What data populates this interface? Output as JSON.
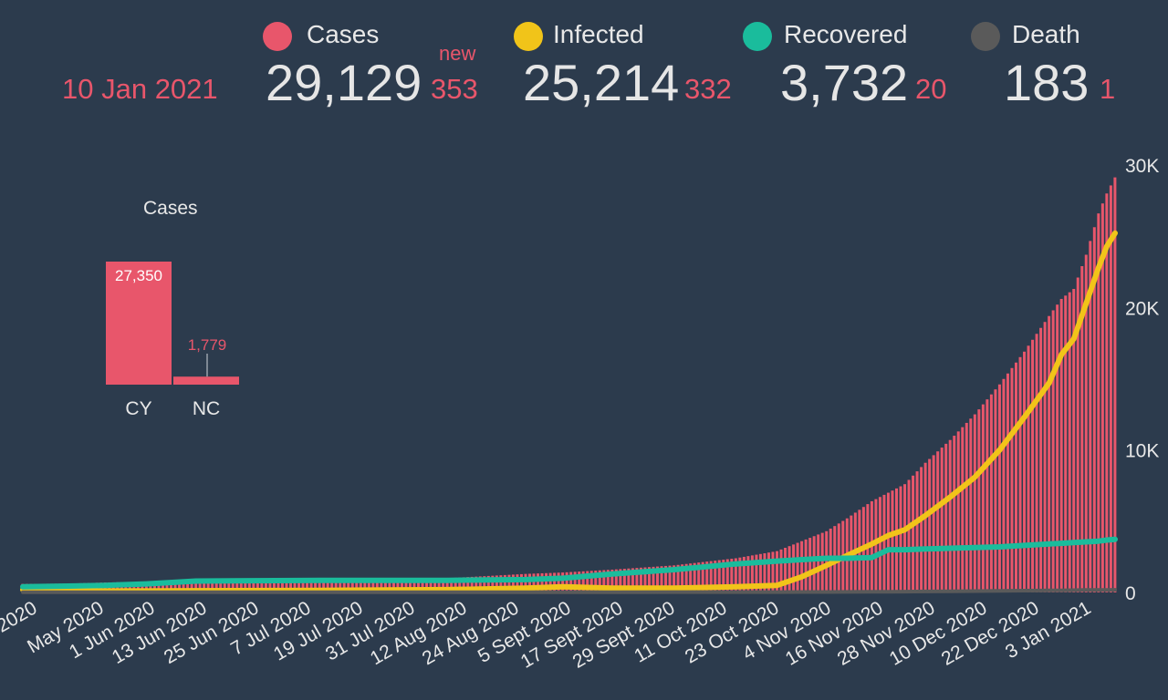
{
  "header": {
    "date": "10 Jan 2021",
    "stats": [
      {
        "label": "Cases",
        "color": "#e8566b",
        "value": "29,129",
        "delta": "353",
        "delta_note": "new"
      },
      {
        "label": "Infected",
        "color": "#f1c419",
        "value": "25,214",
        "delta": "332"
      },
      {
        "label": "Recovered",
        "color": "#1abc9c",
        "value": "3,732",
        "delta": "20"
      },
      {
        "label": "Death",
        "color": "#5a5a5a",
        "value": "183",
        "delta": "1"
      }
    ]
  },
  "mini_chart": {
    "title": "Cases"
  },
  "chart_data": [
    {
      "type": "line",
      "x_tick_labels": [
        "2020",
        "May 2020",
        "1 Jun 2020",
        "13 Jun 2020",
        "25 Jun 2020",
        "7 Jul 2020",
        "19 Jul 2020",
        "31 Jul 2020",
        "12 Aug 2020",
        "24 Aug 2020",
        "5 Sept 2020",
        "17 Sept 2020",
        "29 Sept 2020",
        "11 Oct 2020",
        "23 Oct 2020",
        "4 Nov 2020",
        "16 Nov 2020",
        "28 Nov 2020",
        "10 Dec 2020",
        "22 Dec 2020",
        "3 Jan 2021"
      ],
      "y_tick_labels": [
        "0",
        "10K",
        "20K",
        "30K"
      ],
      "ylim": [
        0,
        30000
      ],
      "x_dates": [
        "2020-04-20",
        "2020-05-01",
        "2020-05-10",
        "2020-05-20",
        "2020-06-01",
        "2020-07-01",
        "2020-08-01",
        "2020-08-20",
        "2020-08-29",
        "2020-09-10",
        "2020-09-25",
        "2020-10-10",
        "2020-10-20",
        "2020-10-26",
        "2020-11-01",
        "2020-11-06",
        "2020-11-12",
        "2020-11-16",
        "2020-11-20",
        "2020-11-25",
        "2020-12-01",
        "2020-12-07",
        "2020-12-13",
        "2020-12-19",
        "2020-12-25",
        "2020-12-28",
        "2020-12-31",
        "2021-01-03",
        "2021-01-06",
        "2021-01-08",
        "2021-01-10"
      ],
      "series": [
        {
          "name": "Cases",
          "color": "#e8566b",
          "style": "bars",
          "values": [
            600,
            620,
            700,
            750,
            870,
            950,
            1000,
            1300,
            1400,
            1600,
            1900,
            2400,
            2900,
            3600,
            4300,
            5200,
            6400,
            7000,
            7600,
            9100,
            10700,
            12500,
            14600,
            16900,
            19400,
            20600,
            21300,
            23700,
            26600,
            28000,
            29129
          ]
        },
        {
          "name": "Infected",
          "color": "#f1c419",
          "style": "line",
          "values": [
            200,
            150,
            100,
            100,
            120,
            150,
            200,
            300,
            400,
            300,
            300,
            400,
            500,
            1100,
            1900,
            2600,
            3400,
            4000,
            4400,
            5400,
            6700,
            8100,
            10000,
            12300,
            14700,
            16700,
            17800,
            20300,
            22800,
            24300,
            25214
          ]
        },
        {
          "name": "Recovered",
          "color": "#1abc9c",
          "style": "line",
          "values": [
            400,
            450,
            500,
            600,
            800,
            850,
            850,
            900,
            1000,
            1300,
            1600,
            2000,
            2200,
            2300,
            2400,
            2400,
            2450,
            3000,
            3000,
            3050,
            3100,
            3150,
            3200,
            3300,
            3400,
            3450,
            3500,
            3550,
            3600,
            3680,
            3732
          ]
        },
        {
          "name": "Death",
          "color": "#5a5a5a",
          "style": "line",
          "values": [
            10,
            15,
            17,
            19,
            19,
            19,
            19,
            20,
            21,
            22,
            23,
            24,
            26,
            29,
            33,
            38,
            46,
            52,
            58,
            68,
            80,
            95,
            110,
            125,
            140,
            150,
            160,
            170,
            178,
            181,
            183
          ]
        }
      ]
    },
    {
      "type": "bar",
      "title": "Cases",
      "categories": [
        "CY",
        "NC"
      ],
      "values": [
        27350,
        1779
      ],
      "value_labels": [
        "27,350",
        "1,779"
      ],
      "color": "#e8566b"
    }
  ]
}
